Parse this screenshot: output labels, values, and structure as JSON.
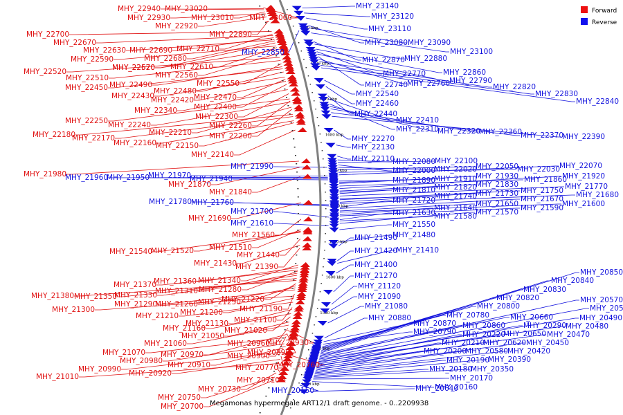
{
  "caption": "Megamonas hypermegale ART12/1 draft genome. - 0..2209938",
  "legend": [
    {
      "label": "Forward",
      "color": "#ee1111"
    },
    {
      "label": "Reverse",
      "color": "#1111ee"
    }
  ],
  "colors": {
    "forward": "#e01010",
    "reverse": "#1010dd",
    "backbone": "#808080"
  },
  "ticks": [
    "1740 kbp",
    "1720 kbp",
    "1700 kbp",
    "1680 kbp",
    "1660 kbp",
    "1640 kbp",
    "1620 kbp",
    "1600 kbp",
    "1580 kbp",
    "1560 kbp",
    "1540 kbp"
  ],
  "forward_genes": [
    {
      "name": "MHY_22940",
      "pos": 0.008
    },
    {
      "name": "MHY_23020",
      "pos": 0.006
    },
    {
      "name": "MHY_22930",
      "pos": 0.016
    },
    {
      "name": "MHY_23010",
      "pos": 0.012
    },
    {
      "name": "MHY_23060",
      "pos": 0.004
    },
    {
      "name": "MHY_22920",
      "pos": 0.022
    },
    {
      "name": "MHY_22890",
      "pos": 0.03
    },
    {
      "name": "MHY_22700",
      "pos": 0.05
    },
    {
      "name": "MHY_22670",
      "pos": 0.058
    },
    {
      "name": "MHY_22630",
      "pos": 0.066
    },
    {
      "name": "MHY_22690",
      "pos": 0.062
    },
    {
      "name": "MHY_22710",
      "pos": 0.055
    },
    {
      "name": "MHY_22590",
      "pos": 0.078
    },
    {
      "name": "MHY_22620",
      "pos": 0.072
    },
    {
      "name": "MHY_22680",
      "pos": 0.068
    },
    {
      "name": "MHY_22570",
      "pos": 0.085
    },
    {
      "name": "MHY_22610",
      "pos": 0.081
    },
    {
      "name": "MHY_22520",
      "pos": 0.1
    },
    {
      "name": "MHY_22560",
      "pos": 0.092
    },
    {
      "name": "MHY_22510",
      "pos": 0.106
    },
    {
      "name": "MHY_22550",
      "pos": 0.112
    },
    {
      "name": "MHY_22450",
      "pos": 0.122
    },
    {
      "name": "MHY_22490",
      "pos": 0.118
    },
    {
      "name": "MHY_22480",
      "pos": 0.128
    },
    {
      "name": "MHY_22430",
      "pos": 0.138
    },
    {
      "name": "MHY_22420",
      "pos": 0.146
    },
    {
      "name": "MHY_22470",
      "pos": 0.142
    },
    {
      "name": "MHY_22400",
      "pos": 0.152
    },
    {
      "name": "MHY_22340",
      "pos": 0.162
    },
    {
      "name": "MHY_22300",
      "pos": 0.17
    },
    {
      "name": "MHY_22250",
      "pos": 0.18
    },
    {
      "name": "MHY_22240",
      "pos": 0.186
    },
    {
      "name": "MHY_22260",
      "pos": 0.184
    },
    {
      "name": "MHY_22210",
      "pos": 0.196
    },
    {
      "name": "MHY_22180",
      "pos": 0.21
    },
    {
      "name": "MHY_22170",
      "pos": 0.214
    },
    {
      "name": "MHY_22200",
      "pos": 0.2
    },
    {
      "name": "MHY_22160",
      "pos": 0.222
    },
    {
      "name": "MHY_22150",
      "pos": 0.226
    },
    {
      "name": "MHY_22140",
      "pos": 0.24
    },
    {
      "name": "MHY_21980",
      "pos": 0.3
    },
    {
      "name": "MHY_21870",
      "pos": 0.312
    },
    {
      "name": "MHY_21840",
      "pos": 0.33
    },
    {
      "name": "MHY_21690",
      "pos": 0.38
    },
    {
      "name": "MHY_21560",
      "pos": 0.412
    },
    {
      "name": "MHY_21510",
      "pos": 0.432
    },
    {
      "name": "MHY_21540",
      "pos": 0.437
    },
    {
      "name": "MHY_21520",
      "pos": 0.435
    },
    {
      "name": "MHY_21440",
      "pos": 0.45
    },
    {
      "name": "MHY_21430",
      "pos": 0.462
    },
    {
      "name": "MHY_21390",
      "pos": 0.468
    },
    {
      "name": "MHY_21360",
      "pos": 0.505
    },
    {
      "name": "MHY_21340",
      "pos": 0.5
    },
    {
      "name": "MHY_21370",
      "pos": 0.51
    },
    {
      "name": "MHY_21310",
      "pos": 0.516
    },
    {
      "name": "MHY_21280",
      "pos": 0.512
    },
    {
      "name": "MHY_21380",
      "pos": 0.53
    },
    {
      "name": "MHY_21350",
      "pos": 0.526
    },
    {
      "name": "MHY_21330",
      "pos": 0.52
    },
    {
      "name": "MHY_21220",
      "pos": 0.536
    },
    {
      "name": "MHY_21290",
      "pos": 0.548
    },
    {
      "name": "MHY_21260",
      "pos": 0.544
    },
    {
      "name": "MHY_21250",
      "pos": 0.54
    },
    {
      "name": "MHY_21190",
      "pos": 0.556
    },
    {
      "name": "MHY_21300",
      "pos": 0.56
    },
    {
      "name": "MHY_21200",
      "pos": 0.564
    },
    {
      "name": "MHY_21210",
      "pos": 0.572
    },
    {
      "name": "MHY_21100",
      "pos": 0.582
    },
    {
      "name": "MHY_21130",
      "pos": 0.586
    },
    {
      "name": "MHY_21160",
      "pos": 0.594
    },
    {
      "name": "MHY_21020",
      "pos": 0.6
    },
    {
      "name": "MHY_21050",
      "pos": 0.61
    },
    {
      "name": "MHY_21060",
      "pos": 0.616
    },
    {
      "name": "MHY_20960",
      "pos": 0.622
    },
    {
      "name": "MHY_20930",
      "pos": 0.626
    },
    {
      "name": "MHY_21070",
      "pos": 0.64
    },
    {
      "name": "MHY_20970",
      "pos": 0.634
    },
    {
      "name": "MHY_20900",
      "pos": 0.638
    },
    {
      "name": "MHY_20890",
      "pos": 0.632
    },
    {
      "name": "MHY_20980",
      "pos": 0.652
    },
    {
      "name": "MHY_20910",
      "pos": 0.66
    },
    {
      "name": "MHY_20990",
      "pos": 0.668
    },
    {
      "name": "MHY_20770",
      "pos": 0.676
    },
    {
      "name": "MHY_20760",
      "pos": 0.67
    },
    {
      "name": "MHY_21010",
      "pos": 0.69
    },
    {
      "name": "MHY_20920",
      "pos": 0.682
    },
    {
      "name": "MHY_20710",
      "pos": 0.7
    },
    {
      "name": "MHY_20730",
      "pos": 0.708
    },
    {
      "name": "MHY_20750",
      "pos": 0.716
    },
    {
      "name": "MHY_20700",
      "pos": 0.722
    }
  ],
  "reverse_genes": [
    {
      "name": "MHY_23140",
      "pos": 0.004
    },
    {
      "name": "MHY_23120",
      "pos": 0.012
    },
    {
      "name": "MHY_23110",
      "pos": 0.02
    },
    {
      "name": "MHY_22850",
      "pos": 0.04
    },
    {
      "name": "MHY_23080",
      "pos": 0.032
    },
    {
      "name": "MHY_23090",
      "pos": 0.036
    },
    {
      "name": "MHY_23100",
      "pos": 0.044
    },
    {
      "name": "MHY_22870",
      "pos": 0.058
    },
    {
      "name": "MHY_22880",
      "pos": 0.062
    },
    {
      "name": "MHY_22770",
      "pos": 0.074
    },
    {
      "name": "MHY_22860",
      "pos": 0.07
    },
    {
      "name": "MHY_22740",
      "pos": 0.082
    },
    {
      "name": "MHY_22760",
      "pos": 0.086
    },
    {
      "name": "MHY_22790",
      "pos": 0.078
    },
    {
      "name": "MHY_22820",
      "pos": 0.09
    },
    {
      "name": "MHY_22830",
      "pos": 0.096
    },
    {
      "name": "MHY_22840",
      "pos": 0.1
    },
    {
      "name": "MHY_22540",
      "pos": 0.12
    },
    {
      "name": "MHY_22460",
      "pos": 0.13
    },
    {
      "name": "MHY_22440",
      "pos": 0.145
    },
    {
      "name": "MHY_22410",
      "pos": 0.15
    },
    {
      "name": "MHY_22310",
      "pos": 0.158
    },
    {
      "name": "MHY_22320",
      "pos": 0.162
    },
    {
      "name": "MHY_22360",
      "pos": 0.166
    },
    {
      "name": "MHY_22370",
      "pos": 0.172
    },
    {
      "name": "MHY_22390",
      "pos": 0.178
    },
    {
      "name": "MHY_22270",
      "pos": 0.2
    },
    {
      "name": "MHY_22130",
      "pos": 0.224
    },
    {
      "name": "MHY_21990",
      "pos": 0.26
    },
    {
      "name": "MHY_22110",
      "pos": 0.242
    },
    {
      "name": "MHY_22080",
      "pos": 0.248
    },
    {
      "name": "MHY_22100",
      "pos": 0.252
    },
    {
      "name": "MHY_22000",
      "pos": 0.256
    },
    {
      "name": "MHY_22020",
      "pos": 0.26
    },
    {
      "name": "MHY_22050",
      "pos": 0.264
    },
    {
      "name": "MHY_22030",
      "pos": 0.268
    },
    {
      "name": "MHY_22070",
      "pos": 0.272
    },
    {
      "name": "MHY_21960",
      "pos": 0.276
    },
    {
      "name": "MHY_21950",
      "pos": 0.278
    },
    {
      "name": "MHY_21970",
      "pos": 0.274
    },
    {
      "name": "MHY_21940",
      "pos": 0.28
    },
    {
      "name": "MHY_21890",
      "pos": 0.282
    },
    {
      "name": "MHY_21910",
      "pos": 0.284
    },
    {
      "name": "MHY_21930",
      "pos": 0.286
    },
    {
      "name": "MHY_21860",
      "pos": 0.29
    },
    {
      "name": "MHY_21920",
      "pos": 0.294
    },
    {
      "name": "MHY_21830",
      "pos": 0.298
    },
    {
      "name": "MHY_21810",
      "pos": 0.3
    },
    {
      "name": "MHY_21820",
      "pos": 0.302
    },
    {
      "name": "MHY_21770",
      "pos": 0.306
    },
    {
      "name": "MHY_21740",
      "pos": 0.31
    },
    {
      "name": "MHY_21750",
      "pos": 0.312
    },
    {
      "name": "MHY_21730",
      "pos": 0.316
    },
    {
      "name": "MHY_21680",
      "pos": 0.318
    },
    {
      "name": "MHY_21780",
      "pos": 0.32
    },
    {
      "name": "MHY_21760",
      "pos": 0.322
    },
    {
      "name": "MHY_21720",
      "pos": 0.324
    },
    {
      "name": "MHY_21670",
      "pos": 0.326
    },
    {
      "name": "MHY_21650",
      "pos": 0.33
    },
    {
      "name": "MHY_21600",
      "pos": 0.332
    },
    {
      "name": "MHY_21640",
      "pos": 0.336
    },
    {
      "name": "MHY_21590",
      "pos": 0.338
    },
    {
      "name": "MHY_21700",
      "pos": 0.34
    },
    {
      "name": "MHY_21630",
      "pos": 0.344
    },
    {
      "name": "MHY_21580",
      "pos": 0.346
    },
    {
      "name": "MHY_21570",
      "pos": 0.35
    },
    {
      "name": "MHY_21610",
      "pos": 0.354
    },
    {
      "name": "MHY_21550",
      "pos": 0.36
    },
    {
      "name": "MHY_21480",
      "pos": 0.38
    },
    {
      "name": "MHY_21490",
      "pos": 0.386
    },
    {
      "name": "MHY_21420",
      "pos": 0.41
    },
    {
      "name": "MHY_21410",
      "pos": 0.414
    },
    {
      "name": "MHY_21400",
      "pos": 0.43
    },
    {
      "name": "MHY_21270",
      "pos": 0.46
    },
    {
      "name": "MHY_21120",
      "pos": 0.48
    },
    {
      "name": "MHY_21090",
      "pos": 0.49
    },
    {
      "name": "MHY_21080",
      "pos": 0.51
    },
    {
      "name": "MHY_20880",
      "pos": 0.534
    },
    {
      "name": "MHY_20870",
      "pos": 0.54
    },
    {
      "name": "MHY_20790",
      "pos": 0.544
    },
    {
      "name": "MHY_20780",
      "pos": 0.548
    },
    {
      "name": "MHY_20800",
      "pos": 0.55
    },
    {
      "name": "MHY_20820",
      "pos": 0.552
    },
    {
      "name": "MHY_20830",
      "pos": 0.554
    },
    {
      "name": "MHY_20840",
      "pos": 0.556
    },
    {
      "name": "MHY_20850",
      "pos": 0.558
    },
    {
      "name": "MHY_20860",
      "pos": 0.56
    },
    {
      "name": "MHY_20660",
      "pos": 0.562
    },
    {
      "name": "MHY_20570",
      "pos": 0.564
    },
    {
      "name": "MHY_20550",
      "pos": 0.566
    },
    {
      "name": "MHY_20490",
      "pos": 0.568
    },
    {
      "name": "MHY_20290",
      "pos": 0.57
    },
    {
      "name": "MHY_20480",
      "pos": 0.572
    },
    {
      "name": "MHY_20220",
      "pos": 0.574
    },
    {
      "name": "MHY_20650",
      "pos": 0.576
    },
    {
      "name": "MHY_20470",
      "pos": 0.578
    },
    {
      "name": "MHY_20210",
      "pos": 0.58
    },
    {
      "name": "MHY_20620",
      "pos": 0.582
    },
    {
      "name": "MHY_20450",
      "pos": 0.584
    },
    {
      "name": "MHY_20200",
      "pos": 0.586
    },
    {
      "name": "MHY_20580",
      "pos": 0.588
    },
    {
      "name": "MHY_20420",
      "pos": 0.59
    },
    {
      "name": "MHY_20190",
      "pos": 0.592
    },
    {
      "name": "MHY_20390",
      "pos": 0.594
    },
    {
      "name": "MHY_20180",
      "pos": 0.596
    },
    {
      "name": "MHY_20350",
      "pos": 0.598
    },
    {
      "name": "MHY_20170",
      "pos": 0.6
    },
    {
      "name": "MHY_20160",
      "pos": 0.604
    },
    {
      "name": "MHY_20150",
      "pos": 0.61
    },
    {
      "name": "MHY_20640",
      "pos": 0.62
    }
  ]
}
